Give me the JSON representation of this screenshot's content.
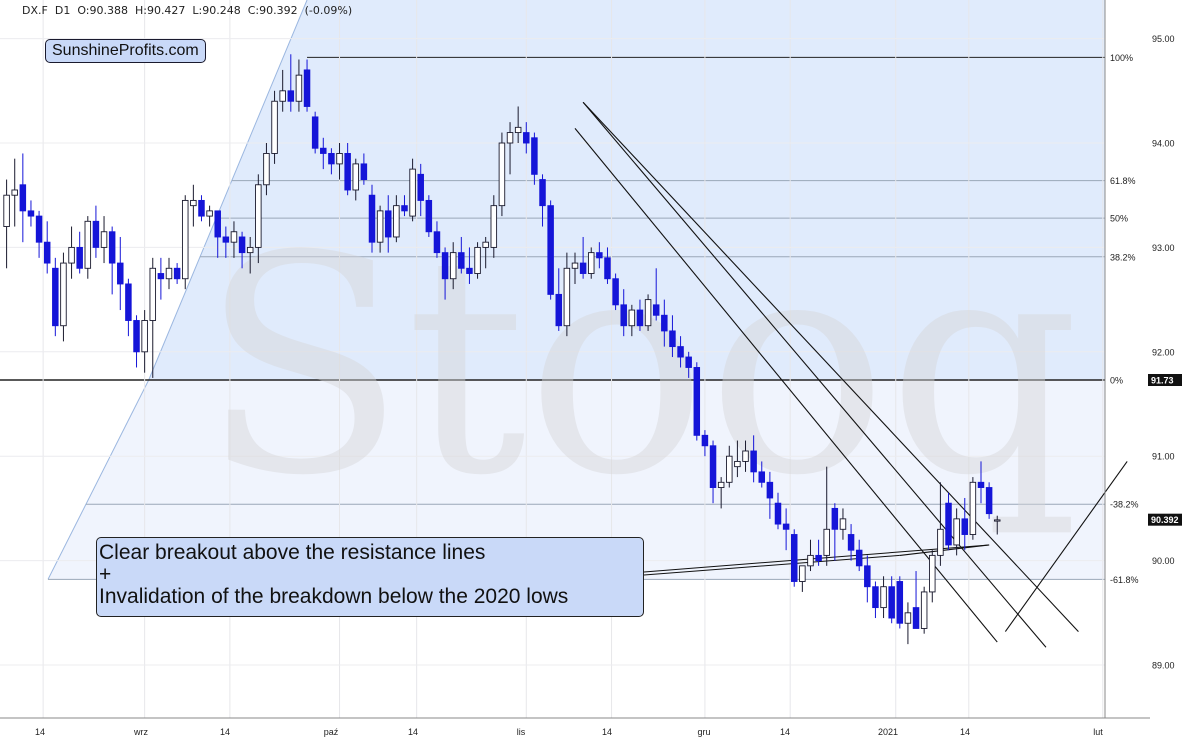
{
  "header": {
    "symbol": "DX.F",
    "interval": "D1",
    "ohlc": "O:90.388  H:90.427  L:90.248  C:90.392  (-0.09%)"
  },
  "brand": "SunshineProfits.com",
  "watermark": "Stooq",
  "annotation": {
    "line1": "Clear breakout above the resistance lines",
    "line2": "+",
    "line3": "Invalidation of the breakdown below the 2020 lows"
  },
  "colors": {
    "down_candle": "#1515d8",
    "up_candle": "#ffffff",
    "fib_fill": "#dce8fb",
    "label_bg": "#111111"
  },
  "chart_data": {
    "type": "candlestick",
    "y_range": [
      88.75,
      95.3
    ],
    "y_ticks": [
      {
        "value": 89.0,
        "label": "89.00"
      },
      {
        "value": 90.0,
        "label": "90.00"
      },
      {
        "value": 91.0,
        "label": "91.00"
      },
      {
        "value": 92.0,
        "label": "92.00"
      },
      {
        "value": 93.0,
        "label": "93.00"
      },
      {
        "value": 94.0,
        "label": "94.00"
      },
      {
        "value": 95.0,
        "label": "95.00"
      }
    ],
    "x_labels": [
      "14",
      "wrz",
      "14",
      "paź",
      "14",
      "lis",
      "14",
      "gru",
      "14",
      "2021",
      "14",
      "lut"
    ],
    "fib_levels": [
      {
        "label": "100%",
        "value": 94.82
      },
      {
        "label": "61.8%",
        "value": 93.64
      },
      {
        "label": "50%",
        "value": 93.28
      },
      {
        "label": "38.2%",
        "value": 92.91
      },
      {
        "label": "0%",
        "value": 91.73
      },
      {
        "label": "-38.2%",
        "value": 90.54
      },
      {
        "label": "-61.8%",
        "value": 89.82
      }
    ],
    "price_labels": [
      {
        "label": "91.73",
        "value": 91.73
      },
      {
        "label": "90.392",
        "value": 90.392
      }
    ],
    "candles": [
      {
        "o": 93.2,
        "h": 93.65,
        "l": 92.8,
        "c": 93.5
      },
      {
        "o": 93.5,
        "h": 93.85,
        "l": 93.2,
        "c": 93.55
      },
      {
        "o": 93.6,
        "h": 93.9,
        "l": 93.05,
        "c": 93.35
      },
      {
        "o": 93.35,
        "h": 93.45,
        "l": 93.2,
        "c": 93.3
      },
      {
        "o": 93.3,
        "h": 93.35,
        "l": 92.9,
        "c": 93.05
      },
      {
        "o": 93.05,
        "h": 93.25,
        "l": 92.75,
        "c": 92.85
      },
      {
        "o": 92.8,
        "h": 92.9,
        "l": 92.15,
        "c": 92.25
      },
      {
        "o": 92.25,
        "h": 92.95,
        "l": 92.1,
        "c": 92.85
      },
      {
        "o": 92.85,
        "h": 93.2,
        "l": 92.7,
        "c": 93.0
      },
      {
        "o": 93.0,
        "h": 93.15,
        "l": 92.75,
        "c": 92.8
      },
      {
        "o": 92.8,
        "h": 93.3,
        "l": 92.7,
        "c": 93.25
      },
      {
        "o": 93.25,
        "h": 93.4,
        "l": 92.9,
        "c": 93.0
      },
      {
        "o": 93.0,
        "h": 93.3,
        "l": 92.85,
        "c": 93.15
      },
      {
        "o": 93.15,
        "h": 93.2,
        "l": 92.55,
        "c": 92.85
      },
      {
        "o": 92.85,
        "h": 93.1,
        "l": 92.4,
        "c": 92.65
      },
      {
        "o": 92.65,
        "h": 92.7,
        "l": 92.15,
        "c": 92.3
      },
      {
        "o": 92.3,
        "h": 92.35,
        "l": 91.85,
        "c": 92.0
      },
      {
        "o": 92.0,
        "h": 92.4,
        "l": 91.8,
        "c": 92.3
      },
      {
        "o": 92.3,
        "h": 92.9,
        "l": 91.75,
        "c": 92.8
      },
      {
        "o": 92.75,
        "h": 92.9,
        "l": 92.5,
        "c": 92.7
      },
      {
        "o": 92.7,
        "h": 92.9,
        "l": 92.6,
        "c": 92.8
      },
      {
        "o": 92.8,
        "h": 92.85,
        "l": 92.65,
        "c": 92.7
      },
      {
        "o": 92.7,
        "h": 93.5,
        "l": 92.6,
        "c": 93.45
      },
      {
        "o": 93.4,
        "h": 93.6,
        "l": 93.2,
        "c": 93.45
      },
      {
        "o": 93.45,
        "h": 93.5,
        "l": 93.25,
        "c": 93.3
      },
      {
        "o": 93.3,
        "h": 93.4,
        "l": 93.2,
        "c": 93.35
      },
      {
        "o": 93.35,
        "h": 93.35,
        "l": 92.9,
        "c": 93.1
      },
      {
        "o": 93.1,
        "h": 93.2,
        "l": 92.9,
        "c": 93.05
      },
      {
        "o": 93.05,
        "h": 93.25,
        "l": 92.9,
        "c": 93.15
      },
      {
        "o": 93.1,
        "h": 93.15,
        "l": 92.8,
        "c": 92.95
      },
      {
        "o": 92.95,
        "h": 93.1,
        "l": 92.75,
        "c": 93.0
      },
      {
        "o": 93.0,
        "h": 93.7,
        "l": 92.85,
        "c": 93.6
      },
      {
        "o": 93.6,
        "h": 94.0,
        "l": 93.5,
        "c": 93.9
      },
      {
        "o": 93.9,
        "h": 94.5,
        "l": 93.8,
        "c": 94.4
      },
      {
        "o": 94.4,
        "h": 94.7,
        "l": 94.3,
        "c": 94.5
      },
      {
        "o": 94.5,
        "h": 94.85,
        "l": 94.3,
        "c": 94.4
      },
      {
        "o": 94.4,
        "h": 94.8,
        "l": 94.3,
        "c": 94.65
      },
      {
        "o": 94.7,
        "h": 94.8,
        "l": 94.3,
        "c": 94.35
      },
      {
        "o": 94.25,
        "h": 94.3,
        "l": 93.9,
        "c": 93.95
      },
      {
        "o": 93.95,
        "h": 94.05,
        "l": 93.75,
        "c": 93.9
      },
      {
        "o": 93.9,
        "h": 93.95,
        "l": 93.7,
        "c": 93.8
      },
      {
        "o": 93.8,
        "h": 94.0,
        "l": 93.65,
        "c": 93.9
      },
      {
        "o": 93.9,
        "h": 94.0,
        "l": 93.5,
        "c": 93.55
      },
      {
        "o": 93.55,
        "h": 93.85,
        "l": 93.45,
        "c": 93.8
      },
      {
        "o": 93.8,
        "h": 93.9,
        "l": 93.6,
        "c": 93.65
      },
      {
        "o": 93.5,
        "h": 93.6,
        "l": 92.95,
        "c": 93.05
      },
      {
        "o": 93.05,
        "h": 93.4,
        "l": 92.95,
        "c": 93.35
      },
      {
        "o": 93.35,
        "h": 93.5,
        "l": 92.95,
        "c": 93.1
      },
      {
        "o": 93.1,
        "h": 93.5,
        "l": 93.05,
        "c": 93.4
      },
      {
        "o": 93.4,
        "h": 93.5,
        "l": 93.3,
        "c": 93.35
      },
      {
        "o": 93.3,
        "h": 93.85,
        "l": 93.25,
        "c": 93.75
      },
      {
        "o": 93.7,
        "h": 93.8,
        "l": 93.3,
        "c": 93.45
      },
      {
        "o": 93.45,
        "h": 93.5,
        "l": 93.1,
        "c": 93.15
      },
      {
        "o": 93.15,
        "h": 93.25,
        "l": 92.9,
        "c": 92.95
      },
      {
        "o": 92.95,
        "h": 93.0,
        "l": 92.5,
        "c": 92.7
      },
      {
        "o": 92.7,
        "h": 93.05,
        "l": 92.6,
        "c": 92.95
      },
      {
        "o": 92.95,
        "h": 93.1,
        "l": 92.75,
        "c": 92.8
      },
      {
        "o": 92.8,
        "h": 93.0,
        "l": 92.65,
        "c": 92.75
      },
      {
        "o": 92.75,
        "h": 93.05,
        "l": 92.7,
        "c": 93.0
      },
      {
        "o": 93.0,
        "h": 93.1,
        "l": 92.8,
        "c": 93.05
      },
      {
        "o": 93.0,
        "h": 93.5,
        "l": 92.9,
        "c": 93.4
      },
      {
        "o": 93.4,
        "h": 94.1,
        "l": 93.3,
        "c": 94.0
      },
      {
        "o": 94.0,
        "h": 94.2,
        "l": 93.7,
        "c": 94.1
      },
      {
        "o": 94.1,
        "h": 94.35,
        "l": 94.0,
        "c": 94.15
      },
      {
        "o": 94.1,
        "h": 94.2,
        "l": 93.9,
        "c": 94.0
      },
      {
        "o": 94.05,
        "h": 94.1,
        "l": 93.6,
        "c": 93.7
      },
      {
        "o": 93.65,
        "h": 93.7,
        "l": 93.2,
        "c": 93.4
      },
      {
        "o": 93.4,
        "h": 93.45,
        "l": 92.5,
        "c": 92.55
      },
      {
        "o": 92.55,
        "h": 92.8,
        "l": 92.2,
        "c": 92.25
      },
      {
        "o": 92.25,
        "h": 92.95,
        "l": 92.15,
        "c": 92.8
      },
      {
        "o": 92.8,
        "h": 92.95,
        "l": 92.65,
        "c": 92.85
      },
      {
        "o": 92.85,
        "h": 93.1,
        "l": 92.7,
        "c": 92.75
      },
      {
        "o": 92.75,
        "h": 93.0,
        "l": 92.7,
        "c": 92.95
      },
      {
        "o": 92.95,
        "h": 93.05,
        "l": 92.8,
        "c": 92.9
      },
      {
        "o": 92.9,
        "h": 93.0,
        "l": 92.65,
        "c": 92.7
      },
      {
        "o": 92.7,
        "h": 92.75,
        "l": 92.4,
        "c": 92.45
      },
      {
        "o": 92.45,
        "h": 92.6,
        "l": 92.15,
        "c": 92.25
      },
      {
        "o": 92.25,
        "h": 92.45,
        "l": 92.15,
        "c": 92.4
      },
      {
        "o": 92.4,
        "h": 92.5,
        "l": 92.2,
        "c": 92.25
      },
      {
        "o": 92.25,
        "h": 92.55,
        "l": 92.2,
        "c": 92.5
      },
      {
        "o": 92.45,
        "h": 92.8,
        "l": 92.3,
        "c": 92.35
      },
      {
        "o": 92.35,
        "h": 92.5,
        "l": 92.05,
        "c": 92.2
      },
      {
        "o": 92.2,
        "h": 92.35,
        "l": 91.95,
        "c": 92.05
      },
      {
        "o": 92.05,
        "h": 92.15,
        "l": 91.85,
        "c": 91.95
      },
      {
        "o": 91.95,
        "h": 92.0,
        "l": 91.75,
        "c": 91.85
      },
      {
        "o": 91.85,
        "h": 91.9,
        "l": 91.15,
        "c": 91.2
      },
      {
        "o": 91.2,
        "h": 91.25,
        "l": 91.0,
        "c": 91.1
      },
      {
        "o": 91.1,
        "h": 91.15,
        "l": 90.55,
        "c": 90.7
      },
      {
        "o": 90.7,
        "h": 90.8,
        "l": 90.5,
        "c": 90.75
      },
      {
        "o": 90.75,
        "h": 91.1,
        "l": 90.7,
        "c": 91.0
      },
      {
        "o": 90.9,
        "h": 91.15,
        "l": 90.8,
        "c": 90.95
      },
      {
        "o": 90.95,
        "h": 91.15,
        "l": 90.85,
        "c": 91.05
      },
      {
        "o": 91.05,
        "h": 91.2,
        "l": 90.75,
        "c": 90.85
      },
      {
        "o": 90.85,
        "h": 90.95,
        "l": 90.7,
        "c": 90.75
      },
      {
        "o": 90.75,
        "h": 90.85,
        "l": 90.4,
        "c": 90.6
      },
      {
        "o": 90.55,
        "h": 90.65,
        "l": 90.3,
        "c": 90.35
      },
      {
        "o": 90.35,
        "h": 90.5,
        "l": 90.1,
        "c": 90.3
      },
      {
        "o": 90.25,
        "h": 90.3,
        "l": 89.75,
        "c": 89.8
      },
      {
        "o": 89.8,
        "h": 89.95,
        "l": 89.7,
        "c": 89.95
      },
      {
        "o": 89.95,
        "h": 90.2,
        "l": 89.9,
        "c": 90.05
      },
      {
        "o": 90.05,
        "h": 90.2,
        "l": 89.95,
        "c": 90.0
      },
      {
        "o": 90.05,
        "h": 90.9,
        "l": 89.95,
        "c": 90.3
      },
      {
        "o": 90.5,
        "h": 90.55,
        "l": 90.0,
        "c": 90.3
      },
      {
        "o": 90.3,
        "h": 90.5,
        "l": 90.2,
        "c": 90.4
      },
      {
        "o": 90.25,
        "h": 90.35,
        "l": 90.0,
        "c": 90.1
      },
      {
        "o": 90.1,
        "h": 90.2,
        "l": 89.9,
        "c": 89.95
      },
      {
        "o": 89.95,
        "h": 90.05,
        "l": 89.6,
        "c": 89.75
      },
      {
        "o": 89.75,
        "h": 89.8,
        "l": 89.45,
        "c": 89.55
      },
      {
        "o": 89.55,
        "h": 89.85,
        "l": 89.45,
        "c": 89.75
      },
      {
        "o": 89.75,
        "h": 89.85,
        "l": 89.4,
        "c": 89.45
      },
      {
        "o": 89.8,
        "h": 89.85,
        "l": 89.35,
        "c": 89.4
      },
      {
        "o": 89.4,
        "h": 89.6,
        "l": 89.2,
        "c": 89.5
      },
      {
        "o": 89.55,
        "h": 89.9,
        "l": 89.35,
        "c": 89.35
      },
      {
        "o": 89.35,
        "h": 89.75,
        "l": 89.3,
        "c": 89.7
      },
      {
        "o": 89.7,
        "h": 90.1,
        "l": 89.6,
        "c": 90.05
      },
      {
        "o": 90.05,
        "h": 90.75,
        "l": 89.95,
        "c": 90.3
      },
      {
        "o": 90.55,
        "h": 90.65,
        "l": 90.1,
        "c": 90.15
      },
      {
        "o": 90.15,
        "h": 90.5,
        "l": 90.05,
        "c": 90.4
      },
      {
        "o": 90.4,
        "h": 90.6,
        "l": 90.1,
        "c": 90.25
      },
      {
        "o": 90.25,
        "h": 90.8,
        "l": 90.2,
        "c": 90.75
      },
      {
        "o": 90.75,
        "h": 90.95,
        "l": 90.55,
        "c": 90.7
      },
      {
        "o": 90.7,
        "h": 90.75,
        "l": 90.4,
        "c": 90.45
      },
      {
        "o": 90.39,
        "h": 90.43,
        "l": 90.25,
        "c": 90.39
      }
    ],
    "trendlines": [
      {
        "x1": 71,
        "y1": 94.39,
        "x2": 128,
        "y2": 89.17
      },
      {
        "x1": 71,
        "y1": 94.39,
        "x2": 132,
        "y2": 89.32
      },
      {
        "x1": 70,
        "y1": 94.14,
        "x2": 122,
        "y2": 89.22
      },
      {
        "x1": 110,
        "y1": 90.05,
        "x2": 121,
        "y2": 90.15
      },
      {
        "x1": 123,
        "y1": 89.32,
        "x2": 138,
        "y2": 90.95
      }
    ]
  }
}
